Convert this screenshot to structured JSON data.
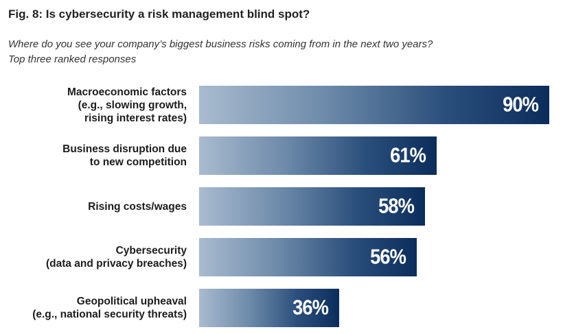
{
  "chart_data": {
    "type": "bar",
    "orientation": "horizontal",
    "title": "Fig. 8: Is cybersecurity a risk management blind spot?",
    "subtitle_lines": [
      "Where do you see your company’s biggest business risks coming from in the next two years?",
      "Top three ranked responses"
    ],
    "categories": [
      [
        "Macroeconomic factors",
        "(e.g., slowing growth,",
        "rising interest rates)"
      ],
      [
        "Business disruption due",
        "to new competition"
      ],
      [
        "Rising costs/wages"
      ],
      [
        "Cybersecurity",
        "(data and privacy breaches)"
      ],
      [
        "Geopolitical upheaval",
        "(e.g., national security threats)"
      ]
    ],
    "values": [
      90,
      61,
      58,
      56,
      36
    ],
    "value_labels": [
      "90%",
      "61%",
      "58%",
      "56%",
      "36%"
    ],
    "xlim": [
      0,
      90
    ],
    "grid": false,
    "legend": "none",
    "colors": {
      "bar_start": "#a9bbcf",
      "bar_end": "#0b2d5b",
      "value_text": "#ffffff"
    }
  }
}
